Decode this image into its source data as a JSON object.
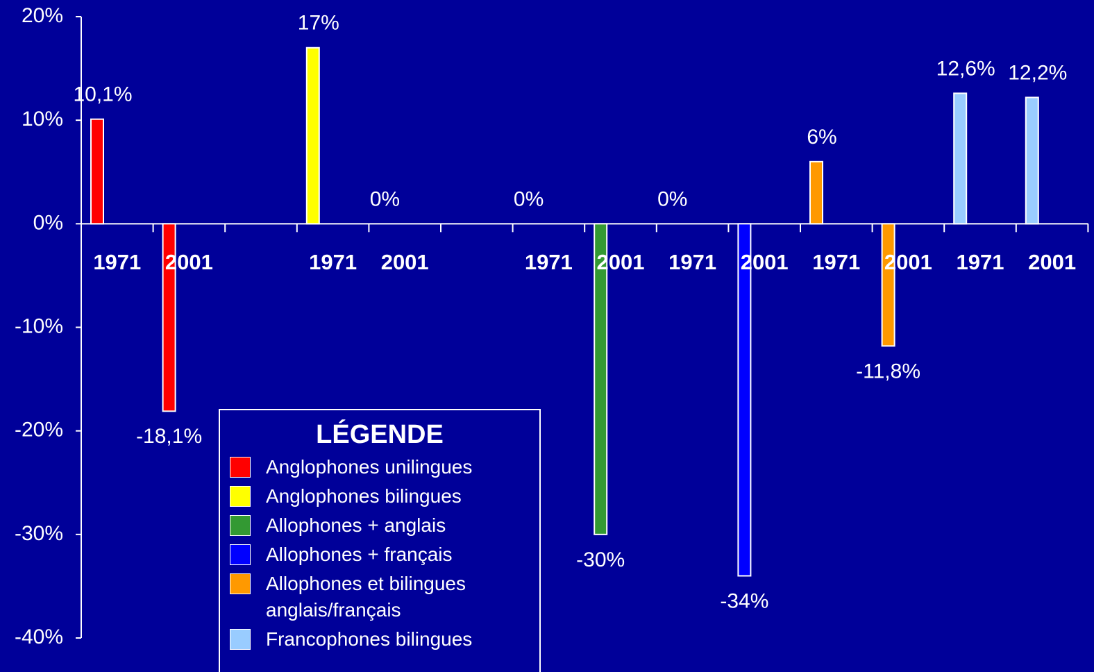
{
  "chart_data": {
    "type": "bar",
    "legend_title": "LÉGENDE",
    "categories": [
      "1971",
      "2001",
      null,
      "1971",
      "2001",
      null,
      "1971",
      "2001",
      "1971",
      "2001",
      "1971",
      "2001",
      "1971",
      "2001"
    ],
    "series": [
      {
        "name": "Anglophones unilingues",
        "color": "#ff0000",
        "values": [
          10.1,
          -18.1,
          null,
          null,
          null,
          null,
          null,
          null,
          null,
          null,
          null,
          null,
          null,
          null
        ],
        "value_labels": [
          "10,1%",
          "-18,1%",
          null,
          null,
          null,
          null,
          null,
          null,
          null,
          null,
          null,
          null,
          null,
          null
        ]
      },
      {
        "name": "Anglophones bilingues",
        "color": "#ffff00",
        "values": [
          null,
          null,
          null,
          17,
          0,
          null,
          null,
          null,
          null,
          null,
          null,
          null,
          null,
          null
        ],
        "value_labels": [
          null,
          null,
          null,
          "17%",
          "0%",
          null,
          null,
          null,
          null,
          null,
          null,
          null,
          null,
          null
        ]
      },
      {
        "name": "Allophones + anglais",
        "color": "#339933",
        "values": [
          null,
          null,
          null,
          null,
          null,
          null,
          0,
          -30,
          null,
          null,
          null,
          null,
          null,
          null
        ],
        "value_labels": [
          null,
          null,
          null,
          null,
          null,
          null,
          "0%",
          "-30%",
          null,
          null,
          null,
          null,
          null,
          null
        ]
      },
      {
        "name": "Allophones + français",
        "color": "#0000ff",
        "values": [
          null,
          null,
          null,
          null,
          null,
          null,
          null,
          null,
          0,
          -34,
          null,
          null,
          null,
          null
        ],
        "value_labels": [
          null,
          null,
          null,
          null,
          null,
          null,
          null,
          null,
          "0%",
          "-34%",
          null,
          null,
          null,
          null
        ]
      },
      {
        "name": "Allophones et bilingues anglais/français",
        "color": "#ff9900",
        "values": [
          null,
          null,
          null,
          null,
          null,
          null,
          null,
          null,
          null,
          null,
          6,
          -11.8,
          null,
          null
        ],
        "value_labels": [
          null,
          null,
          null,
          null,
          null,
          null,
          null,
          null,
          null,
          null,
          "6%",
          "-11,8%",
          null,
          null
        ]
      },
      {
        "name": "Francophones bilingues",
        "color": "#99ccff",
        "values": [
          null,
          null,
          null,
          null,
          null,
          null,
          null,
          null,
          null,
          null,
          null,
          null,
          12.6,
          12.2
        ],
        "value_labels": [
          null,
          null,
          null,
          null,
          null,
          null,
          null,
          null,
          null,
          null,
          null,
          null,
          "12,6%",
          "12,2%"
        ]
      }
    ],
    "ylim": [
      -40,
      20
    ],
    "yticks": [
      {
        "value": -40,
        "label": "-40%"
      },
      {
        "value": -30,
        "label": "-30%"
      },
      {
        "value": -20,
        "label": "-20%"
      },
      {
        "value": -10,
        "label": "-10%"
      },
      {
        "value": 0,
        "label": "0%"
      },
      {
        "value": 10,
        "label": "10%"
      },
      {
        "value": 20,
        "label": "20%"
      }
    ]
  }
}
